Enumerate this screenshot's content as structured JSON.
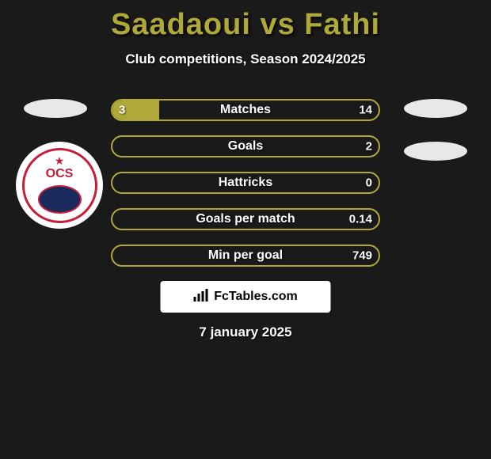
{
  "header": {
    "title": "Saadaoui vs Fathi",
    "subtitle": "Club competitions, Season 2024/2025"
  },
  "stats": [
    {
      "label": "Matches",
      "left_value": "3",
      "right_value": "14",
      "fill_percent": 17.6
    },
    {
      "label": "Goals",
      "left_value": "",
      "right_value": "2",
      "fill_percent": 0
    },
    {
      "label": "Hattricks",
      "left_value": "",
      "right_value": "0",
      "fill_percent": 0
    },
    {
      "label": "Goals per match",
      "left_value": "",
      "right_value": "0.14",
      "fill_percent": 0
    },
    {
      "label": "Min per goal",
      "left_value": "",
      "right_value": "749",
      "fill_percent": 0
    }
  ],
  "badge": {
    "text": "OCS"
  },
  "footer": {
    "site_name": "FcTables.com",
    "date": "7 january 2025"
  },
  "colors": {
    "background": "#1a1a1a",
    "accent": "#b0a93a",
    "badge_red": "#c41e3a",
    "badge_blue": "#1a2a5c",
    "white": "#ffffff"
  }
}
